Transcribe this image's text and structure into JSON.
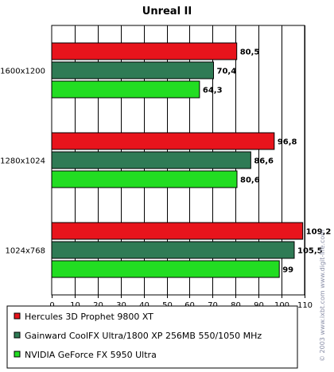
{
  "chart_data": {
    "type": "bar",
    "orientation": "horizontal",
    "title": "Unreal II",
    "categories": [
      "1600x1200",
      "1280x1024",
      "1024x768"
    ],
    "series": [
      {
        "name": "Hercules 3D Prophet 9800 XT",
        "color": "#e8141c",
        "values": [
          80.5,
          96.8,
          109.2
        ],
        "labels": [
          "80,5",
          "96,8",
          "109,2"
        ]
      },
      {
        "name": "Gainward CoolFX Ultra/1800 XP 256MB 550/1050 MHz",
        "color": "#2f7b55",
        "values": [
          70.4,
          86.6,
          105.5
        ],
        "labels": [
          "70,4",
          "86,6",
          "105,5"
        ]
      },
      {
        "name": "NVIDIA GeForce FX 5950 Ultra",
        "color": "#22dd22",
        "values": [
          64.3,
          80.6,
          99
        ],
        "labels": [
          "64,3",
          "80,6",
          "99"
        ]
      }
    ],
    "xlim": [
      0,
      110
    ],
    "ticks": [
      0,
      10,
      20,
      30,
      40,
      50,
      60,
      70,
      80,
      90,
      100,
      110
    ],
    "grid": "vertical",
    "legend": "bottom",
    "plot_bg": "#ffffff",
    "outer_bg": "#ffffff",
    "watermark": "© 2003 www.ixbt.com   www.digit-life.com"
  }
}
